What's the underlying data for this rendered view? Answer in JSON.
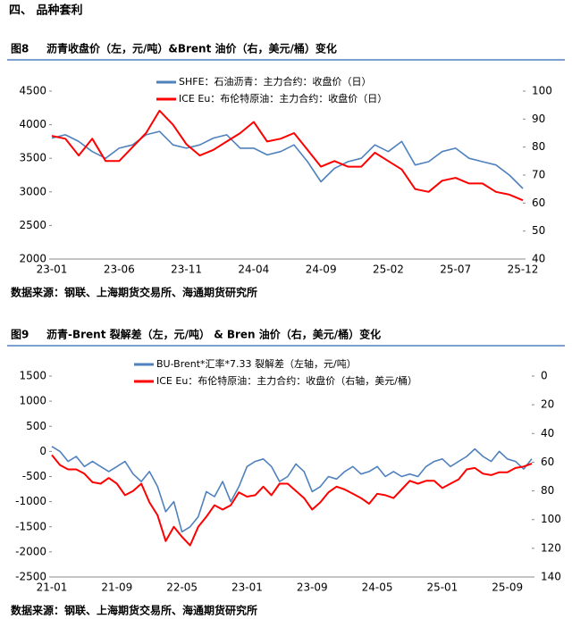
{
  "heading": "四、 品种套利",
  "chart_data": [
    {
      "type": "line",
      "label": "图8",
      "title": "沥青收盘价（左，元/吨）&Brent 油价（右，美元/桶）变化",
      "categories": [
        "23-01",
        null,
        null,
        null,
        null,
        "23-06",
        null,
        null,
        null,
        null,
        "23-11",
        null,
        null,
        null,
        null,
        "24-04",
        null,
        null,
        null,
        null,
        "24-09",
        null,
        null,
        null,
        null,
        "25-02",
        null,
        null,
        null,
        null,
        "25-07",
        null,
        null,
        null,
        null,
        "25-12"
      ],
      "series": [
        {
          "name": "SHFE：石油沥青：主力合约：收盘价（日）",
          "color": "#4f81bd",
          "axis": "y",
          "values": [
            3800,
            3850,
            3750,
            3600,
            3500,
            3650,
            3700,
            3850,
            3900,
            3700,
            3650,
            3700,
            3800,
            3850,
            3650,
            3650,
            3550,
            3600,
            3700,
            3450,
            3150,
            3350,
            3450,
            3500,
            3700,
            3600,
            3750,
            3400,
            3450,
            3600,
            3650,
            3500,
            3450,
            3400,
            3250,
            3050
          ]
        },
        {
          "name": "ICE Eu：布伦特原油：主力合约：收盘价（日）",
          "color": "#ff0000",
          "axis": "y2",
          "values": [
            84,
            83,
            77,
            83,
            75,
            75,
            80,
            85,
            93,
            88,
            81,
            77,
            79,
            82,
            85,
            89,
            82,
            83,
            85,
            79,
            73,
            75,
            73,
            73,
            78,
            75,
            72,
            65,
            64,
            68,
            69,
            67,
            67,
            64,
            63,
            61
          ]
        }
      ],
      "ylim": [
        2000,
        4500
      ],
      "yticks": [
        2000,
        2500,
        3000,
        3500,
        4000,
        4500
      ],
      "y2lim": [
        40,
        100
      ],
      "y2ticks": [
        40,
        50,
        60,
        70,
        80,
        90,
        100
      ],
      "y2_inverted": false,
      "source": "数据来源：钢联、上海期货交易所、海通期货研究所"
    },
    {
      "type": "line",
      "label": "图9",
      "title": "沥青-Brent 裂解差（左，元/吨） & Bren 油价（右，美元/桶）变化",
      "categories": [
        "21-01",
        null,
        null,
        null,
        null,
        null,
        null,
        null,
        "21-09",
        null,
        null,
        null,
        null,
        null,
        null,
        null,
        "22-05",
        null,
        null,
        null,
        null,
        null,
        null,
        null,
        "23-01",
        null,
        null,
        null,
        null,
        null,
        null,
        null,
        "23-09",
        null,
        null,
        null,
        null,
        null,
        null,
        null,
        "24-05",
        null,
        null,
        null,
        null,
        null,
        null,
        null,
        "25-01",
        null,
        null,
        null,
        null,
        null,
        null,
        null,
        "25-09",
        null,
        null,
        null
      ],
      "series": [
        {
          "name": "BU-Brent*汇率*7.33 裂解差（左轴，元/吨）",
          "color": "#4f81bd",
          "axis": "y",
          "values": [
            100,
            0,
            -200,
            -100,
            -300,
            -200,
            -300,
            -400,
            -300,
            -200,
            -450,
            -600,
            -400,
            -700,
            -1200,
            -1000,
            -1600,
            -1500,
            -1300,
            -800,
            -900,
            -600,
            -1000,
            -700,
            -300,
            -200,
            -150,
            -300,
            -600,
            -500,
            -250,
            -400,
            -800,
            -700,
            -500,
            -550,
            -400,
            -300,
            -450,
            -400,
            -300,
            -500,
            -400,
            -500,
            -450,
            -500,
            -300,
            -200,
            -150,
            -300,
            -200,
            -100,
            50,
            -100,
            -200,
            0,
            -150,
            -200,
            -350,
            -150
          ]
        },
        {
          "name": "ICE Eu：布伦特原油：主力合约：收盘价（右轴，美元/桶）",
          "color": "#ff0000",
          "axis": "y2",
          "values": [
            55,
            62,
            65,
            65,
            68,
            74,
            75,
            71,
            75,
            83,
            80,
            75,
            88,
            97,
            115,
            105,
            112,
            118,
            105,
            98,
            90,
            93,
            90,
            81,
            84,
            83,
            77,
            83,
            75,
            75,
            80,
            85,
            93,
            88,
            81,
            77,
            79,
            82,
            85,
            89,
            82,
            83,
            85,
            79,
            73,
            75,
            73,
            73,
            78,
            75,
            72,
            65,
            64,
            68,
            69,
            67,
            67,
            64,
            63,
            61
          ]
        }
      ],
      "ylim": [
        -2500,
        1500
      ],
      "yticks": [
        -2500,
        -2000,
        -1500,
        -1000,
        -500,
        0,
        500,
        1000,
        1500
      ],
      "y2lim": [
        0,
        140
      ],
      "y2ticks": [
        0,
        20,
        40,
        60,
        80,
        100,
        120,
        140
      ],
      "y2_inverted": true,
      "source": "数据来源：钢联、上海期货交易所、海通期货研究所"
    }
  ]
}
